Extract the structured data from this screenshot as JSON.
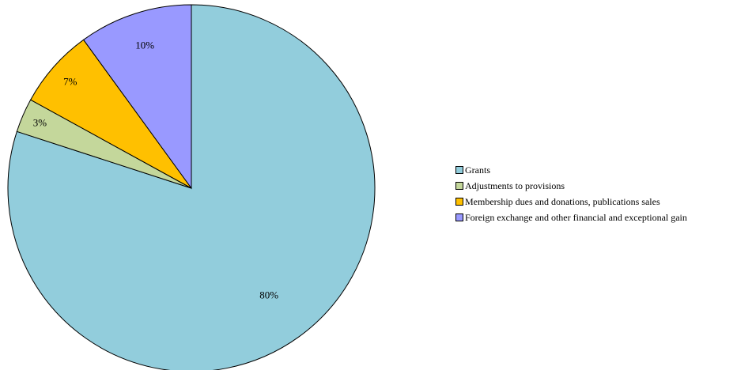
{
  "chart_data": {
    "type": "pie",
    "title": "",
    "start_angle_deg": 0,
    "direction": "clockwise",
    "slices": [
      {
        "label": "Grants",
        "value": 80,
        "display": "80%",
        "color": "#92CDDC"
      },
      {
        "label": "Adjustments to provisions",
        "value": 3,
        "display": "3%",
        "color": "#C4D79B"
      },
      {
        "label": "Membership dues and donations, publications sales",
        "value": 7,
        "display": "7%",
        "color": "#FFC000"
      },
      {
        "label": "Foreign exchange and other financial and exceptional gain",
        "value": 10,
        "display": "10%",
        "color": "#9999FF"
      }
    ],
    "legend": {
      "placement": "right"
    },
    "border_color": "#000000"
  }
}
